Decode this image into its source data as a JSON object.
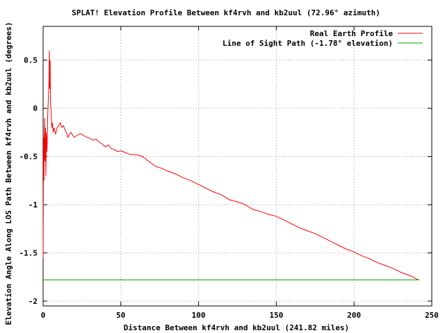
{
  "chart_data": {
    "type": "line",
    "title": "SPLAT! Elevation Profile Between kf4rvh and kb2uul (72.96° azimuth)",
    "xlabel": "Distance Between kf4rvh and kb2uul (241.82 miles)",
    "ylabel": "Elevation Angle Along LOS Path Between kf4rvh and kb2uul (degrees)",
    "xlim": [
      0,
      250
    ],
    "ylim": [
      -2.05,
      0.85
    ],
    "xticks": [
      0,
      50,
      100,
      150,
      200,
      250
    ],
    "xtick_labels": [
      "0",
      "50",
      "100",
      "150",
      "200",
      "250"
    ],
    "yticks": [
      0.5,
      0,
      -0.5,
      -1,
      -1.5,
      -2
    ],
    "ytick_labels": [
      "0.5",
      "0",
      "-0.5",
      "-1",
      "-1.5",
      "-2"
    ],
    "grid": true,
    "legend_position": "top-right",
    "series": [
      {
        "name": "Real Earth Profile",
        "color": "#ff0000",
        "x": [
          0.0,
          0.3,
          0.6,
          0.9,
          1.2,
          1.5,
          1.8,
          2.1,
          2.5,
          3.0,
          3.5,
          3.8,
          4.0,
          4.2,
          4.5,
          4.8,
          5.2,
          5.6,
          6.0,
          6.5,
          7.0,
          8.0,
          9.0,
          10.0,
          11.0,
          12.0,
          13.0,
          14.0,
          15.0,
          16.0,
          17.0,
          18.0,
          19.0,
          20.0,
          22.0,
          24.0,
          26.0,
          28.0,
          30.0,
          32.0,
          34.0,
          36.0,
          38.0,
          40.0,
          42.0,
          44.0,
          46.0,
          48.0,
          50.0,
          53.0,
          56.0,
          60.0,
          64.0,
          68.0,
          72.0,
          76.0,
          80.0,
          85.0,
          90.0,
          95.0,
          100.0,
          105.0,
          110.0,
          115.0,
          120.0,
          125.0,
          130.0,
          135.0,
          140.0,
          145.0,
          150.0,
          155.0,
          160.0,
          165.0,
          170.0,
          175.0,
          180.0,
          185.0,
          190.0,
          195.0,
          200.0,
          205.0,
          210.0,
          215.0,
          220.0,
          225.0,
          230.0,
          235.0,
          238.0,
          240.0,
          241.82
        ],
        "values": [
          -1.55,
          -0.3,
          -0.75,
          -0.1,
          -0.55,
          -0.2,
          -0.7,
          -0.25,
          -0.45,
          -0.05,
          0.15,
          0.3,
          0.6,
          0.2,
          0.5,
          0.05,
          -0.05,
          -0.2,
          -0.15,
          -0.25,
          -0.2,
          -0.27,
          -0.2,
          -0.18,
          -0.15,
          -0.2,
          -0.18,
          -0.22,
          -0.25,
          -0.3,
          -0.27,
          -0.25,
          -0.28,
          -0.3,
          -0.28,
          -0.26,
          -0.28,
          -0.3,
          -0.31,
          -0.33,
          -0.32,
          -0.35,
          -0.37,
          -0.4,
          -0.38,
          -0.42,
          -0.43,
          -0.45,
          -0.44,
          -0.46,
          -0.48,
          -0.48,
          -0.5,
          -0.55,
          -0.6,
          -0.62,
          -0.65,
          -0.68,
          -0.72,
          -0.75,
          -0.79,
          -0.83,
          -0.87,
          -0.9,
          -0.95,
          -0.97,
          -1.0,
          -1.05,
          -1.07,
          -1.1,
          -1.12,
          -1.16,
          -1.2,
          -1.24,
          -1.27,
          -1.3,
          -1.34,
          -1.38,
          -1.42,
          -1.46,
          -1.49,
          -1.53,
          -1.56,
          -1.6,
          -1.63,
          -1.66,
          -1.7,
          -1.73,
          -1.75,
          -1.77,
          -1.78
        ]
      },
      {
        "name": "Line of Sight Path (-1.78° elevation)",
        "color": "#00a000",
        "x": [
          0,
          241.82
        ],
        "values": [
          -1.78,
          -1.78
        ]
      }
    ]
  }
}
